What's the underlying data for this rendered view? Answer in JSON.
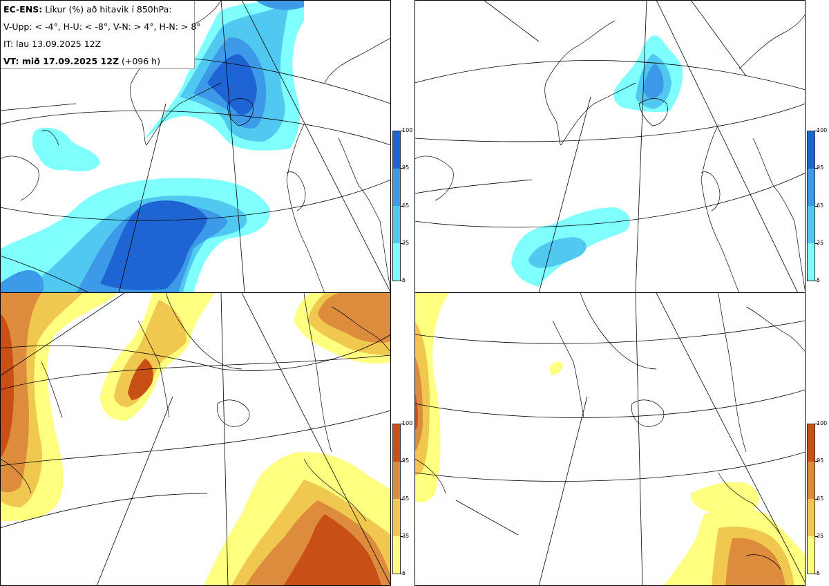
{
  "header": {
    "model": "EC-ENS:",
    "title": "Líkur (%) að hitavik í 850hPa:",
    "definitions": "V-Upp: < -4°, H-U: < -8°, V-N: > 4°, H-N: > 8°",
    "init_time": "IT: lau 13.09.2025 12Z",
    "valid_label": "VT: mið 17.09.2025 12Z",
    "lead": "(+096 h)"
  },
  "colorbars": {
    "cold": {
      "colors": [
        "#80ffff",
        "#50c8f0",
        "#3c9ae8",
        "#1e64d2"
      ],
      "ticks": [
        "100",
        "95",
        "65",
        "35",
        "5"
      ]
    },
    "warm": {
      "colors": [
        "#ffff80",
        "#f0c850",
        "#dc8c3c",
        "#c85014"
      ],
      "ticks": [
        "100",
        "95",
        "65",
        "35",
        "5"
      ]
    }
  },
  "panels": [
    "V-Upp",
    "H-U",
    "V-N",
    "H-N"
  ]
}
